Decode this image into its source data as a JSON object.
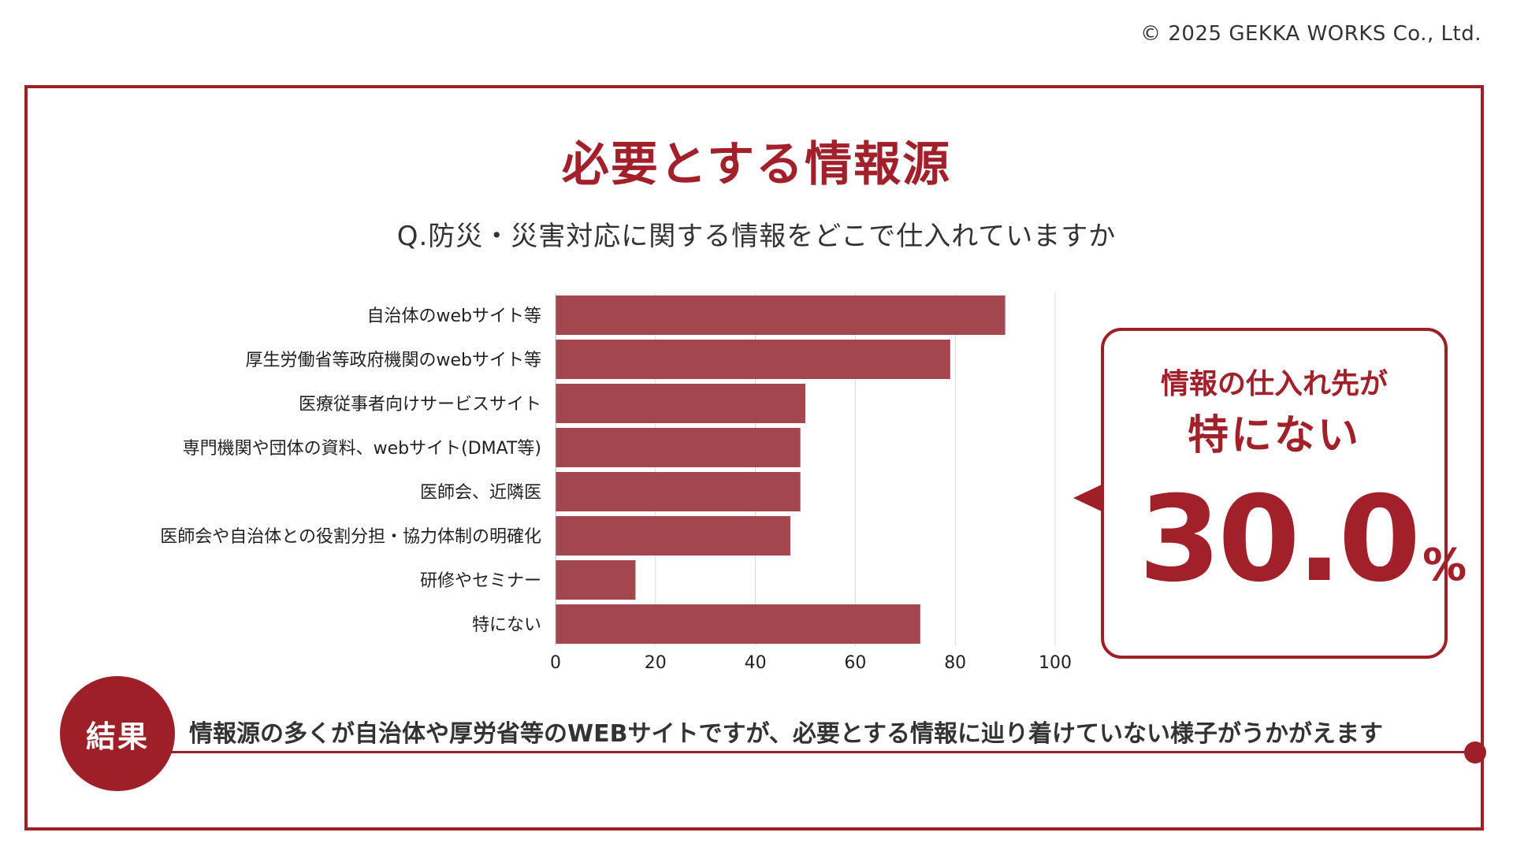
{
  "copyright": "© 2025 GEKKA WORKS Co., Ltd.",
  "title": "必要とする情報源",
  "question": "Q.防災・災害対応に関する情報をどこで仕入れていますか",
  "colors": {
    "accent": "#9e1f27",
    "bar": "#a3464d",
    "grid": "#d9d9d9"
  },
  "chart_data": {
    "type": "bar",
    "orientation": "horizontal",
    "categories": [
      "自治体のwebサイト等",
      "厚生労働省等政府機関のwebサイト等",
      "医療従事者向けサービスサイト",
      "専門機関や団体の資料、webサイト(DMAT等)",
      "医師会、近隣医",
      "医師会や自治体との役割分担・協力体制の明確化",
      "研修やセミナー",
      "特にない"
    ],
    "values": [
      90,
      79,
      50,
      49,
      49,
      47,
      16,
      73
    ],
    "xlim": [
      0,
      100
    ],
    "xticks": [
      0,
      20,
      40,
      60,
      80,
      100
    ],
    "grid": true,
    "legend": "none"
  },
  "callout": {
    "line1": "情報の仕入れ先が",
    "line2": "特にない",
    "value": "30.0",
    "unit": "%"
  },
  "result": {
    "badge": "結果",
    "text": "情報源の多くが自治体や厚労省等のWEBサイトですが、必要とする情報に辿り着けていない様子がうかがえます"
  }
}
